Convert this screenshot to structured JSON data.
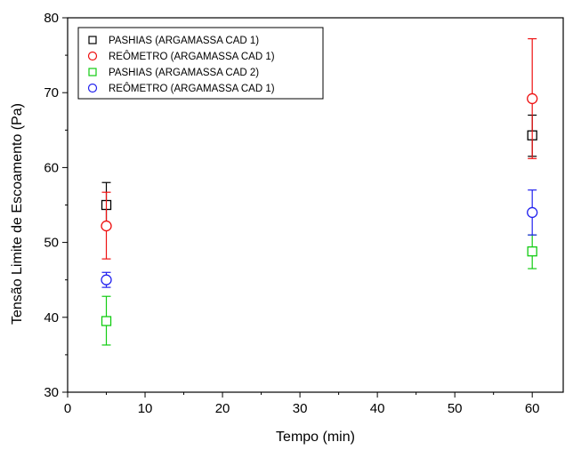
{
  "chart_data": {
    "type": "scatter",
    "title": "",
    "xlabel": "Tempo (min)",
    "ylabel": "Tensão Limite de Escoamento (Pa)",
    "xlim": [
      0,
      64
    ],
    "ylim": [
      30,
      80
    ],
    "xticks": [
      0,
      10,
      20,
      30,
      40,
      50,
      60
    ],
    "yticks": [
      30,
      40,
      50,
      60,
      70,
      80
    ],
    "grid": false,
    "legend_position": "top-left",
    "series": [
      {
        "name": "PASHIAS (ARGAMASSA CAD 1)",
        "marker": "square",
        "color": "#000000",
        "points": [
          {
            "x": 5,
            "y": 55.0,
            "err_low": 52.0,
            "err_high": 58.0
          },
          {
            "x": 60,
            "y": 64.3,
            "err_low": 61.5,
            "err_high": 67.0
          }
        ]
      },
      {
        "name": "REÔMETRO (ARGAMASSA CAD 1)",
        "marker": "circle",
        "color": "#ee1111",
        "points": [
          {
            "x": 5,
            "y": 52.2,
            "err_low": 47.8,
            "err_high": 56.7
          },
          {
            "x": 60,
            "y": 69.2,
            "err_low": 61.2,
            "err_high": 77.2
          }
        ]
      },
      {
        "name": "PASHIAS (ARGAMASSA CAD 2)",
        "marker": "square",
        "color": "#11cc11",
        "points": [
          {
            "x": 5,
            "y": 39.5,
            "err_low": 36.3,
            "err_high": 42.8
          },
          {
            "x": 60,
            "y": 48.8,
            "err_low": 46.5,
            "err_high": 51.0
          }
        ]
      },
      {
        "name": "REÔMETRO (ARGAMASSA CAD 1)",
        "marker": "circle",
        "color": "#2222ee",
        "points": [
          {
            "x": 5,
            "y": 45.0,
            "err_low": 44.0,
            "err_high": 46.0
          },
          {
            "x": 60,
            "y": 54.0,
            "err_low": 51.0,
            "err_high": 57.0
          }
        ]
      }
    ]
  }
}
